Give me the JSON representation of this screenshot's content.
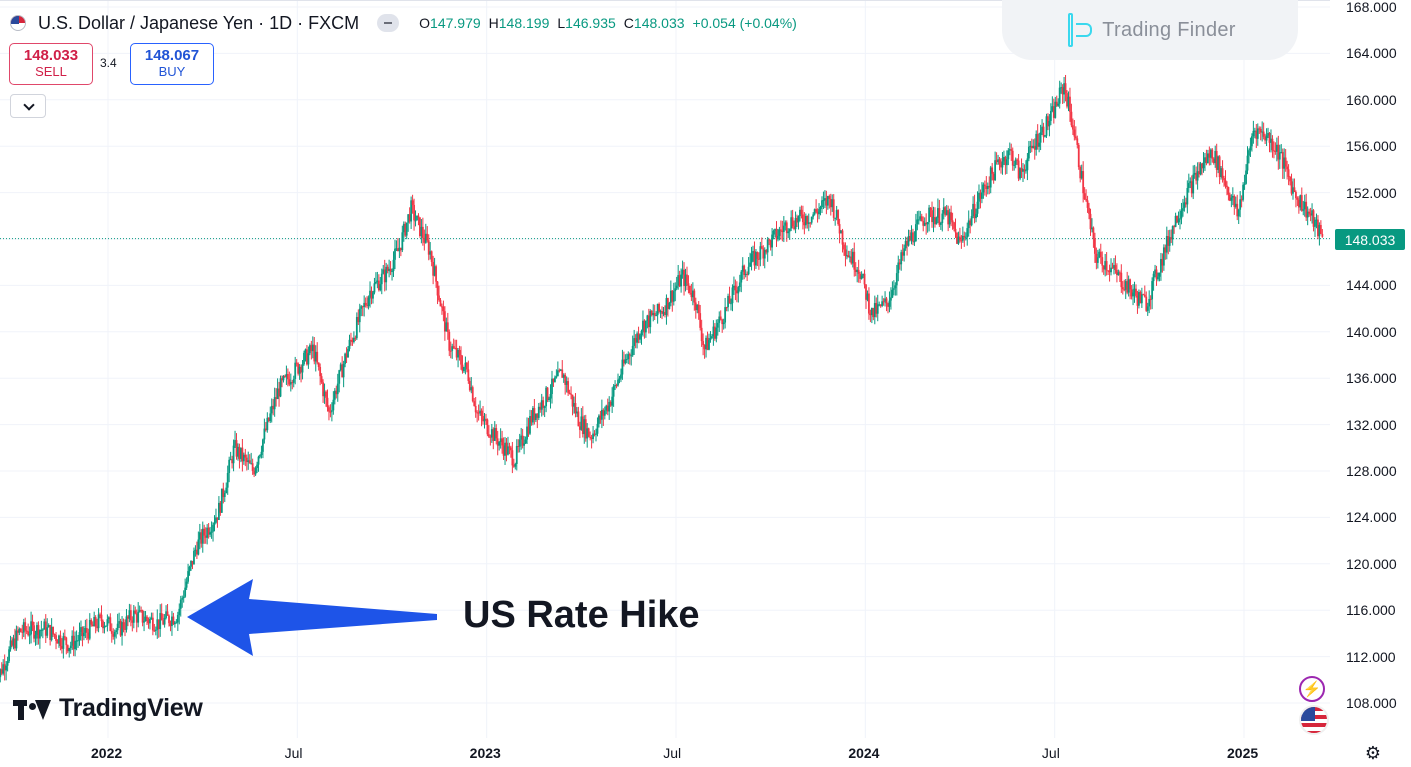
{
  "header": {
    "symbol_title": "U.S. Dollar / Japanese Yen · 1D · FXCM",
    "open_label": "O",
    "open_value": "147.979",
    "high_label": "H",
    "high_value": "148.199",
    "low_label": "L",
    "low_value": "146.935",
    "close_label": "C",
    "close_value": "148.033",
    "change": "+0.054 (+0.04%)"
  },
  "trade": {
    "sell_price": "148.033",
    "sell_label": "SELL",
    "spread": "3.4",
    "buy_price": "148.067",
    "buy_label": "BUY"
  },
  "brand": {
    "name": "Trading Finder"
  },
  "watermark": {
    "name": "TradingView"
  },
  "annotation": {
    "text": "US Rate Hike"
  },
  "last_price_tag": "148.033",
  "colors": {
    "up": "#089981",
    "down": "#f23645",
    "arrow": "#1e54e8",
    "grid": "#f0f3fa",
    "last_price_line": "#089981"
  },
  "icons": {
    "flag": "usd-jpy-flag-icon",
    "collapse": "minus-icon",
    "dropdown": "chevron-down-icon",
    "brand": "trading-finder-logo-icon",
    "tv": "tradingview-logo-icon",
    "bolt": "lightning-icon",
    "us_flag": "us-flag-icon",
    "settings": "gear-icon"
  },
  "chart_data": {
    "type": "candlestick",
    "title": "U.S. Dollar / Japanese Yen · 1D · FXCM",
    "xlabel": "",
    "ylabel": "",
    "ylim": [
      106,
      168
    ],
    "grid": true,
    "y_ticks": [
      "168.000",
      "164.000",
      "160.000",
      "156.000",
      "152.000",
      "148.000",
      "144.000",
      "140.000",
      "136.000",
      "132.000",
      "128.000",
      "124.000",
      "120.000",
      "116.000",
      "112.000",
      "108.000"
    ],
    "x_ticks": [
      {
        "label": "2022",
        "month": 0
      },
      {
        "label": "Jul",
        "month": 6
      },
      {
        "label": "2023",
        "month": 12
      },
      {
        "label": "Jul",
        "month": 18
      },
      {
        "label": "2024",
        "month": 24
      },
      {
        "label": "Jul",
        "month": 30
      },
      {
        "label": "2025",
        "month": 36
      }
    ],
    "x_range_months": [
      -3.6,
      38.8
    ],
    "last_price": 148.033,
    "price_path": [
      {
        "t": -3.6,
        "p": 109.5
      },
      {
        "t": -3.2,
        "p": 112.0
      },
      {
        "t": -2.8,
        "p": 114.2
      },
      {
        "t": -2.0,
        "p": 114.4
      },
      {
        "t": -1.2,
        "p": 113.0
      },
      {
        "t": -0.2,
        "p": 115.2
      },
      {
        "t": 0.3,
        "p": 114.2
      },
      {
        "t": 0.8,
        "p": 115.6
      },
      {
        "t": 1.6,
        "p": 114.9
      },
      {
        "t": 2.2,
        "p": 115.6
      },
      {
        "t": 2.8,
        "p": 121.5
      },
      {
        "t": 3.5,
        "p": 124.5
      },
      {
        "t": 4.0,
        "p": 130.0
      },
      {
        "t": 4.6,
        "p": 128.0
      },
      {
        "t": 5.4,
        "p": 135.0
      },
      {
        "t": 6.5,
        "p": 138.5
      },
      {
        "t": 7.0,
        "p": 133.0
      },
      {
        "t": 7.6,
        "p": 138.5
      },
      {
        "t": 8.3,
        "p": 143.5
      },
      {
        "t": 8.8,
        "p": 145.0
      },
      {
        "t": 9.2,
        "p": 147.0
      },
      {
        "t": 9.6,
        "p": 150.6
      },
      {
        "t": 10.2,
        "p": 147.0
      },
      {
        "t": 10.8,
        "p": 139.0
      },
      {
        "t": 11.4,
        "p": 136.5
      },
      {
        "t": 11.7,
        "p": 133.0
      },
      {
        "t": 12.4,
        "p": 130.5
      },
      {
        "t": 12.9,
        "p": 129.0
      },
      {
        "t": 13.4,
        "p": 132.5
      },
      {
        "t": 13.9,
        "p": 134.5
      },
      {
        "t": 14.4,
        "p": 136.5
      },
      {
        "t": 14.9,
        "p": 132.5
      },
      {
        "t": 15.3,
        "p": 131.0
      },
      {
        "t": 15.9,
        "p": 134.0
      },
      {
        "t": 16.4,
        "p": 137.5
      },
      {
        "t": 16.9,
        "p": 140.5
      },
      {
        "t": 17.6,
        "p": 142.0
      },
      {
        "t": 18.2,
        "p": 144.8
      },
      {
        "t": 18.6,
        "p": 143.0
      },
      {
        "t": 18.9,
        "p": 138.5
      },
      {
        "t": 19.6,
        "p": 142.0
      },
      {
        "t": 20.2,
        "p": 145.5
      },
      {
        "t": 20.9,
        "p": 147.5
      },
      {
        "t": 21.6,
        "p": 149.5
      },
      {
        "t": 22.3,
        "p": 150.0
      },
      {
        "t": 22.9,
        "p": 151.5
      },
      {
        "t": 23.4,
        "p": 147.0
      },
      {
        "t": 23.8,
        "p": 145.5
      },
      {
        "t": 24.2,
        "p": 141.5
      },
      {
        "t": 24.7,
        "p": 142.5
      },
      {
        "t": 25.3,
        "p": 147.5
      },
      {
        "t": 25.9,
        "p": 150.0
      },
      {
        "t": 26.6,
        "p": 150.0
      },
      {
        "t": 27.0,
        "p": 147.5
      },
      {
        "t": 27.6,
        "p": 151.5
      },
      {
        "t": 28.2,
        "p": 154.5
      },
      {
        "t": 28.6,
        "p": 155.5
      },
      {
        "t": 28.9,
        "p": 153.5
      },
      {
        "t": 29.4,
        "p": 156.5
      },
      {
        "t": 29.9,
        "p": 158.5
      },
      {
        "t": 30.3,
        "p": 161.3
      },
      {
        "t": 30.6,
        "p": 157.5
      },
      {
        "t": 30.9,
        "p": 152.5
      },
      {
        "t": 31.3,
        "p": 146.5
      },
      {
        "t": 31.6,
        "p": 146.0
      },
      {
        "t": 32.1,
        "p": 144.5
      },
      {
        "t": 32.6,
        "p": 143.0
      },
      {
        "t": 32.9,
        "p": 142.5
      },
      {
        "t": 33.3,
        "p": 145.5
      },
      {
        "t": 33.8,
        "p": 149.5
      },
      {
        "t": 34.2,
        "p": 152.0
      },
      {
        "t": 34.7,
        "p": 154.5
      },
      {
        "t": 35.0,
        "p": 155.5
      },
      {
        "t": 35.4,
        "p": 153.0
      },
      {
        "t": 35.8,
        "p": 150.0
      },
      {
        "t": 36.3,
        "p": 157.5
      },
      {
        "t": 36.7,
        "p": 157.0
      },
      {
        "t": 37.1,
        "p": 155.5
      },
      {
        "t": 37.6,
        "p": 152.0
      },
      {
        "t": 38.1,
        "p": 150.0
      },
      {
        "t": 38.5,
        "p": 148.0
      }
    ]
  }
}
